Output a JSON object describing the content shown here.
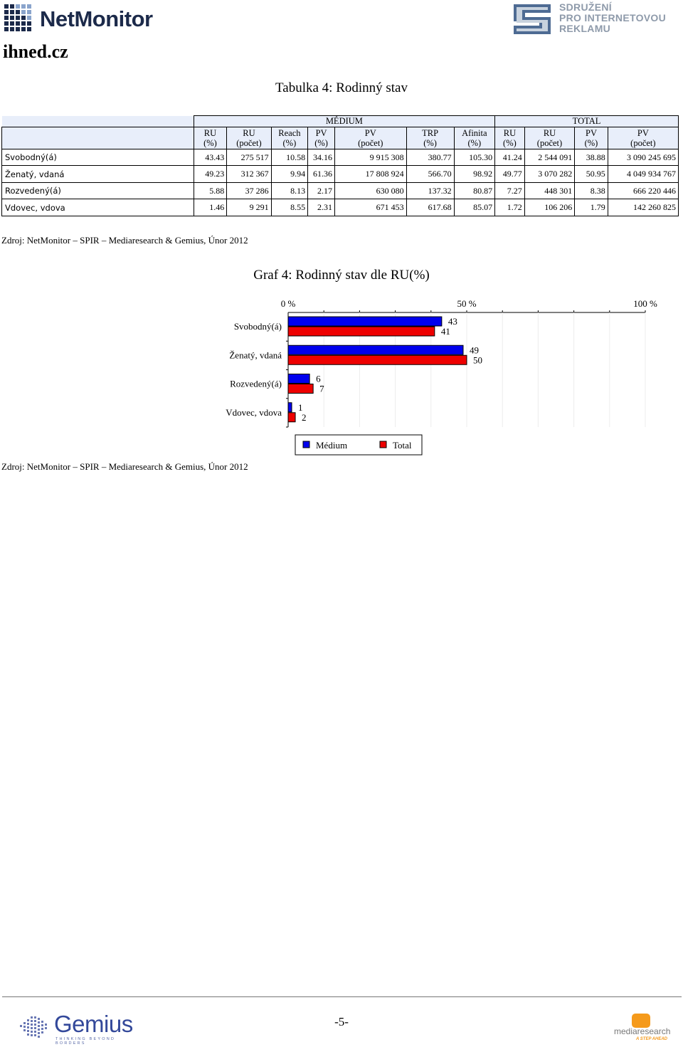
{
  "header": {
    "netmonitor_logo": "NetMonitor",
    "spir_logo": [
      "SDRUŽENÍ",
      "PRO INTERNETOVOU",
      "REKLAMU"
    ],
    "site_label": "ihned.cz"
  },
  "table": {
    "title": "Tabulka 4: Rodinný stav",
    "group_medium": "MÉDIUM",
    "group_total": "TOTAL",
    "columns": [
      [
        "RU",
        "(%)"
      ],
      [
        "RU",
        "(počet)"
      ],
      [
        "Reach",
        "(%)"
      ],
      [
        "PV",
        "(%)"
      ],
      [
        "PV",
        "(počet)"
      ],
      [
        "TRP",
        "(%)"
      ],
      [
        "Afinita",
        "(%)"
      ],
      [
        "RU",
        "(%)"
      ],
      [
        "RU",
        "(počet)"
      ],
      [
        "PV",
        "(%)"
      ],
      [
        "PV",
        "(počet)"
      ]
    ],
    "rows": [
      {
        "label": "Svobodný(á)",
        "values": [
          "43.43",
          "275 517",
          "10.58",
          "34.16",
          "9 915 308",
          "380.77",
          "105.30",
          "41.24",
          "2 544 091",
          "38.88",
          "3 090 245 695"
        ]
      },
      {
        "label": "Ženatý, vdaná",
        "values": [
          "49.23",
          "312 367",
          "9.94",
          "61.36",
          "17 808 924",
          "566.70",
          "98.92",
          "49.77",
          "3 070 282",
          "50.95",
          "4 049 934 767"
        ]
      },
      {
        "label": "Rozvedený(á)",
        "values": [
          "5.88",
          "37 286",
          "8.13",
          "2.17",
          "630 080",
          "137.32",
          "80.87",
          "7.27",
          "448 301",
          "8.38",
          "666 220 446"
        ]
      },
      {
        "label": "Vdovec, vdova",
        "values": [
          "1.46",
          "9 291",
          "8.55",
          "2.31",
          "671 453",
          "617.68",
          "85.07",
          "1.72",
          "106 206",
          "1.79",
          "142 260 825"
        ]
      }
    ]
  },
  "source_text": "Zdroj: NetMonitor – SPIR – Mediaresearch & Gemius, Únor 2012",
  "chart_title": "Graf 4: Rodinný stav dle RU(%)",
  "chart_data": {
    "type": "bar",
    "orientation": "horizontal",
    "title": "Graf 4: Rodinný stav dle RU(%)",
    "categories": [
      "Svobodný(á)",
      "Ženatý, vdaná",
      "Rozvedený(á)",
      "Vdovec, vdova"
    ],
    "series": [
      {
        "name": "Médium",
        "color": "#0000ee",
        "values": [
          43,
          49,
          6,
          1
        ]
      },
      {
        "name": "Total",
        "color": "#ee0000",
        "values": [
          41,
          50,
          7,
          2
        ]
      }
    ],
    "xlim": [
      0,
      100
    ],
    "ticks": [
      "0 %",
      "50 %",
      "100 %"
    ],
    "tick_values": [
      0,
      50,
      100
    ],
    "legend_position": "bottom",
    "grid": true
  },
  "footer": {
    "gemius_logo": "Gemius",
    "gemius_tagline": "THINKING BEYOND BORDERS",
    "page_number": "-5-",
    "mediaresearch_logo": "mediaresearch",
    "mediaresearch_tagline": "A STEP AHEAD"
  }
}
